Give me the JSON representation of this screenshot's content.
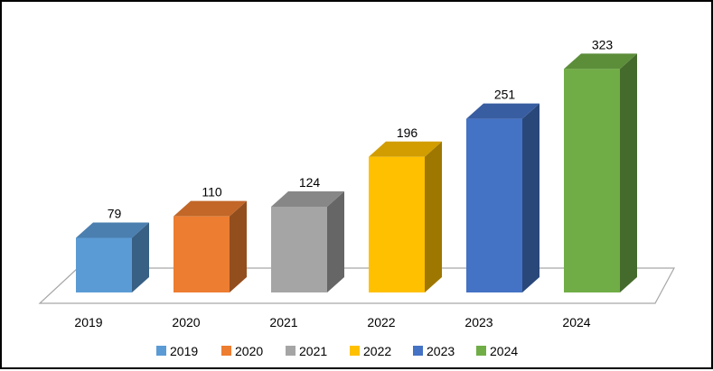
{
  "chart_data": {
    "type": "bar",
    "categories": [
      "2019",
      "2020",
      "2021",
      "2022",
      "2023",
      "2024"
    ],
    "values": [
      79,
      110,
      124,
      196,
      251,
      323
    ],
    "colors": [
      "#5b9bd5",
      "#ed7d31",
      "#a5a5a5",
      "#ffc000",
      "#4472c4",
      "#70ad47"
    ],
    "data_labels": [
      "79",
      "110",
      "124",
      "196",
      "251",
      "323"
    ],
    "title": "",
    "xlabel": "",
    "ylabel": "",
    "style": "3d-column",
    "grid": false,
    "legend": {
      "position": "bottom",
      "entries": [
        "2019",
        "2020",
        "2021",
        "2022",
        "2023",
        "2024"
      ]
    }
  }
}
